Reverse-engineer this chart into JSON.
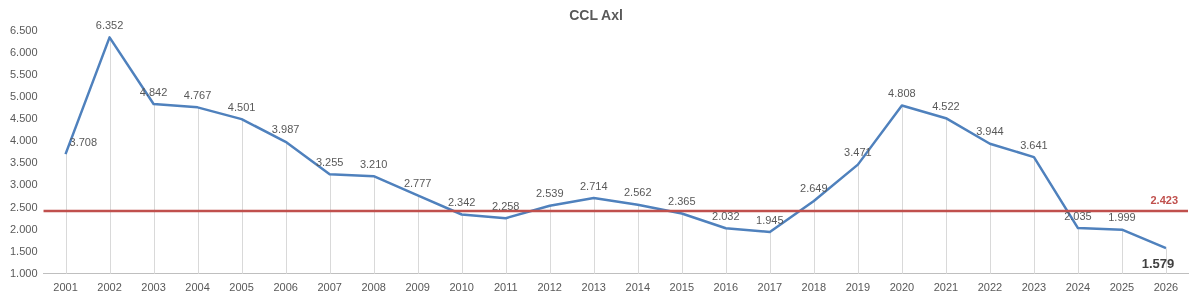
{
  "chart_data": {
    "type": "line",
    "title": "CCL Axl",
    "categories": [
      "2001",
      "2002",
      "2003",
      "2004",
      "2005",
      "2006",
      "2007",
      "2008",
      "2009",
      "2010",
      "2011",
      "2012",
      "2013",
      "2014",
      "2015",
      "2016",
      "2017",
      "2018",
      "2019",
      "2020",
      "2021",
      "2022",
      "2023",
      "2024",
      "2025",
      "2026"
    ],
    "series": [
      {
        "color": "#4f81bd",
        "values": [
          3708,
          6352,
          4842,
          4767,
          4501,
          3987,
          3255,
          3210,
          2777,
          2342,
          2258,
          2539,
          2714,
          2562,
          2365,
          2032,
          1945,
          2649,
          3471,
          4808,
          4522,
          3944,
          3641,
          2035,
          1999,
          1579
        ],
        "value_labels": [
          "3.708",
          "6.352",
          "4.842",
          "4.767",
          "4.501",
          "3.987",
          "3.255",
          "3.210",
          "2.777",
          "2.342",
          "2.258",
          "2.539",
          "2.714",
          "2.562",
          "2.365",
          "2.032",
          "1.945",
          "2.649",
          "3.471",
          "4.808",
          "4.522",
          "3.944",
          "3.641",
          "2.035",
          "1.999",
          "1.579"
        ]
      }
    ],
    "ylim": [
      1000,
      6500
    ],
    "yticks": [
      {
        "value": 1000,
        "label": "1.000"
      },
      {
        "value": 1500,
        "label": "1.500"
      },
      {
        "value": 2000,
        "label": "2.000"
      },
      {
        "value": 2500,
        "label": "2.500"
      },
      {
        "value": 3000,
        "label": "3.000"
      },
      {
        "value": 3500,
        "label": "3.500"
      },
      {
        "value": 4000,
        "label": "4.000"
      },
      {
        "value": 4500,
        "label": "4.500"
      },
      {
        "value": 5000,
        "label": "5.000"
      },
      {
        "value": 5500,
        "label": "5.500"
      },
      {
        "value": 6000,
        "label": "6.000"
      },
      {
        "value": 6500,
        "label": "6.500"
      }
    ],
    "ref_lines": [
      {
        "axis": "y",
        "value": 2423,
        "label": "2.423",
        "color": "#c0504d"
      }
    ],
    "grid": "x",
    "legend": false,
    "marker": "none",
    "line_style": "solid"
  }
}
